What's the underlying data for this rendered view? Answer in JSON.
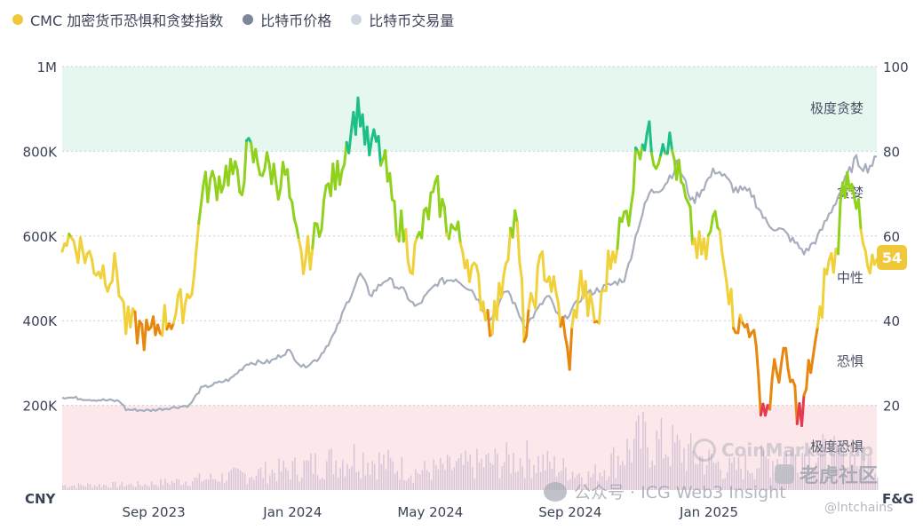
{
  "legend": {
    "fg_label": "CMC 加密货币恐惧和贪婪指数",
    "price_label": "比特币价格",
    "volume_label": "比特币交易量"
  },
  "colors": {
    "fg_dot": "#f0c93a",
    "price_dot": "#7d8598",
    "volume_dot": "#cfd6e2",
    "extreme_greed_band": "#e6f7f0",
    "extreme_fear_band": "#fce8ea",
    "greed": "#8fd11d",
    "neutral": "#f0d13a",
    "fear": "#e8870e",
    "extreme_fear": "#e8384f",
    "extreme_greed": "#1cbf86"
  },
  "badge": {
    "value": "54"
  },
  "watermarks": {
    "coinmarketcap": "CoinMarketCap",
    "wechat": "公众号 · ICG Web3 Insight",
    "laohu": "老虎社区",
    "handle": "@lntchains"
  },
  "chart_data": {
    "type": "line",
    "left_axis": {
      "unit": "CNY",
      "range": [
        0,
        1000000
      ],
      "ticks": [
        "200K",
        "400K",
        "600K",
        "800K",
        "1M"
      ]
    },
    "right_axis": {
      "unit": "F&G",
      "range": [
        0,
        100
      ],
      "ticks": [
        "20",
        "40",
        "60",
        "80",
        "100"
      ]
    },
    "x_ticks": [
      "Sep 2023",
      "Jan 2024",
      "May 2024",
      "Sep 2024",
      "Jan 2025"
    ],
    "zones": [
      {
        "label": "极度贪婪",
        "range": [
          80,
          100
        ]
      },
      {
        "label": "贪婪",
        "range": [
          60,
          80
        ]
      },
      {
        "label": "中性",
        "range": [
          40,
          60
        ]
      },
      {
        "label": "恐惧",
        "range": [
          20,
          40
        ]
      },
      {
        "label": "极度恐惧",
        "range": [
          0,
          20
        ]
      }
    ],
    "series": [
      {
        "name": "CMC 加密货币恐惧和贪婪指数",
        "axis": "right",
        "points": [
          [
            "2023-06-25",
            60
          ],
          [
            "2023-07-05",
            59
          ],
          [
            "2023-07-15",
            56
          ],
          [
            "2023-07-25",
            53
          ],
          [
            "2023-08-05",
            51
          ],
          [
            "2023-08-12",
            52
          ],
          [
            "2023-08-20",
            39
          ],
          [
            "2023-09-01",
            38
          ],
          [
            "2023-09-10",
            36
          ],
          [
            "2023-09-20",
            40
          ],
          [
            "2023-10-01",
            41
          ],
          [
            "2023-10-12",
            45
          ],
          [
            "2023-10-20",
            52
          ],
          [
            "2023-10-25",
            70
          ],
          [
            "2023-11-01",
            72
          ],
          [
            "2023-11-10",
            73
          ],
          [
            "2023-11-20",
            76
          ],
          [
            "2023-11-28",
            71
          ],
          [
            "2023-12-05",
            80
          ],
          [
            "2023-12-15",
            77
          ],
          [
            "2023-12-25",
            76
          ],
          [
            "2024-01-01",
            73
          ],
          [
            "2024-01-08",
            75
          ],
          [
            "2024-01-14",
            62
          ],
          [
            "2024-01-22",
            53
          ],
          [
            "2024-02-01",
            58
          ],
          [
            "2024-02-08",
            66
          ],
          [
            "2024-02-15",
            72
          ],
          [
            "2024-02-22",
            74
          ],
          [
            "2024-03-01",
            82
          ],
          [
            "2024-03-06",
            87
          ],
          [
            "2024-03-13",
            90
          ],
          [
            "2024-03-20",
            80
          ],
          [
            "2024-03-27",
            82
          ],
          [
            "2024-04-05",
            75
          ],
          [
            "2024-04-12",
            65
          ],
          [
            "2024-04-20",
            61
          ],
          [
            "2024-04-28",
            54
          ],
          [
            "2024-05-05",
            60
          ],
          [
            "2024-05-13",
            67
          ],
          [
            "2024-05-20",
            70
          ],
          [
            "2024-05-28",
            63
          ],
          [
            "2024-06-05",
            61
          ],
          [
            "2024-06-15",
            55
          ],
          [
            "2024-06-25",
            48
          ],
          [
            "2024-07-05",
            40
          ],
          [
            "2024-07-12",
            43
          ],
          [
            "2024-07-20",
            58
          ],
          [
            "2024-07-28",
            64
          ],
          [
            "2024-08-05",
            35
          ],
          [
            "2024-08-12",
            45
          ],
          [
            "2024-08-20",
            54
          ],
          [
            "2024-08-28",
            49
          ],
          [
            "2024-09-06",
            40
          ],
          [
            "2024-09-12",
            30
          ],
          [
            "2024-09-22",
            50
          ],
          [
            "2024-09-30",
            43
          ],
          [
            "2024-10-08",
            39
          ],
          [
            "2024-10-16",
            52
          ],
          [
            "2024-10-25",
            60
          ],
          [
            "2024-11-05",
            67
          ],
          [
            "2024-11-12",
            82
          ],
          [
            "2024-11-20",
            84
          ],
          [
            "2024-11-28",
            79
          ],
          [
            "2024-12-05",
            84
          ],
          [
            "2024-12-12",
            80
          ],
          [
            "2024-12-20",
            72
          ],
          [
            "2025-01-01",
            58
          ],
          [
            "2025-01-10",
            55
          ],
          [
            "2025-01-18",
            64
          ],
          [
            "2025-01-25",
            60
          ],
          [
            "2025-02-03",
            42
          ],
          [
            "2025-02-12",
            38
          ],
          [
            "2025-02-20",
            40
          ],
          [
            "2025-02-27",
            23
          ],
          [
            "2025-03-05",
            18
          ],
          [
            "2025-03-12",
            27
          ],
          [
            "2025-03-20",
            31
          ],
          [
            "2025-03-28",
            24
          ],
          [
            "2025-04-05",
            16
          ],
          [
            "2025-04-12",
            29
          ],
          [
            "2025-04-20",
            37
          ],
          [
            "2025-04-26",
            52
          ],
          [
            "2025-05-05",
            55
          ],
          [
            "2025-05-12",
            73
          ],
          [
            "2025-05-20",
            75
          ],
          [
            "2025-05-27",
            60
          ],
          [
            "2025-06-03",
            50
          ],
          [
            "2025-06-10",
            54
          ]
        ]
      },
      {
        "name": "比特币价格",
        "axis": "left",
        "points": [
          [
            "2023-06-25",
            220000
          ],
          [
            "2023-07-20",
            214000
          ],
          [
            "2023-08-15",
            210000
          ],
          [
            "2023-08-20",
            190000
          ],
          [
            "2023-09-10",
            188000
          ],
          [
            "2023-10-01",
            195000
          ],
          [
            "2023-10-15",
            200000
          ],
          [
            "2023-10-25",
            240000
          ],
          [
            "2023-11-20",
            262000
          ],
          [
            "2023-12-05",
            300000
          ],
          [
            "2023-12-25",
            303000
          ],
          [
            "2024-01-10",
            330000
          ],
          [
            "2024-01-22",
            290000
          ],
          [
            "2024-02-05",
            310000
          ],
          [
            "2024-02-20",
            372000
          ],
          [
            "2024-03-01",
            440000
          ],
          [
            "2024-03-13",
            510000
          ],
          [
            "2024-03-22",
            460000
          ],
          [
            "2024-04-05",
            500000
          ],
          [
            "2024-04-20",
            470000
          ],
          [
            "2024-05-01",
            430000
          ],
          [
            "2024-05-20",
            490000
          ],
          [
            "2024-06-05",
            500000
          ],
          [
            "2024-06-20",
            470000
          ],
          [
            "2024-07-05",
            400000
          ],
          [
            "2024-07-20",
            475000
          ],
          [
            "2024-08-05",
            385000
          ],
          [
            "2024-08-25",
            460000
          ],
          [
            "2024-09-06",
            395000
          ],
          [
            "2024-09-25",
            460000
          ],
          [
            "2024-10-15",
            480000
          ],
          [
            "2024-11-01",
            500000
          ],
          [
            "2024-11-12",
            620000
          ],
          [
            "2024-11-22",
            700000
          ],
          [
            "2024-12-05",
            720000
          ],
          [
            "2024-12-17",
            770000
          ],
          [
            "2024-12-30",
            680000
          ],
          [
            "2025-01-20",
            760000
          ],
          [
            "2025-02-05",
            710000
          ],
          [
            "2025-02-20",
            700000
          ],
          [
            "2025-03-05",
            630000
          ],
          [
            "2025-03-20",
            610000
          ],
          [
            "2025-04-08",
            560000
          ],
          [
            "2025-04-20",
            600000
          ],
          [
            "2025-05-08",
            700000
          ],
          [
            "2025-05-22",
            780000
          ],
          [
            "2025-06-01",
            760000
          ],
          [
            "2025-06-10",
            780000
          ]
        ]
      },
      {
        "name": "比特币交易量",
        "axis": "left",
        "profile": [
          [
            "2023-06-25",
            10
          ],
          [
            "2023-09-01",
            12
          ],
          [
            "2023-11-01",
            25
          ],
          [
            "2024-01-10",
            45
          ],
          [
            "2024-03-10",
            75
          ],
          [
            "2024-05-01",
            40
          ],
          [
            "2024-08-05",
            70
          ],
          [
            "2024-10-01",
            30
          ],
          [
            "2024-11-15",
            110
          ],
          [
            "2024-12-10",
            95
          ],
          [
            "2025-02-01",
            45
          ],
          [
            "2025-04-07",
            85
          ],
          [
            "2025-06-10",
            55
          ]
        ]
      }
    ]
  }
}
